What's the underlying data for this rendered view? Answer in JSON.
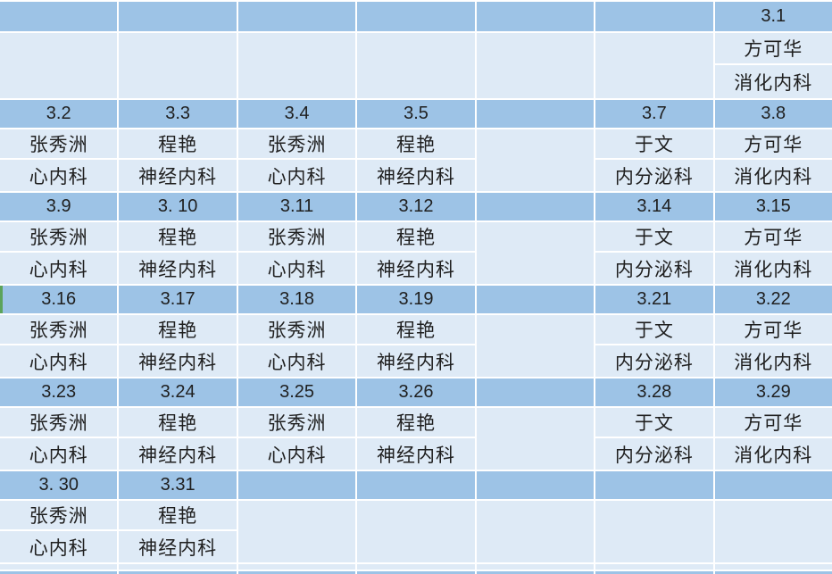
{
  "colors": {
    "date_row_bg": "#9DC3E6",
    "entry_row_bg": "#DEEAF6",
    "grid_line": "#FFFFFF",
    "text": "#1F1F1F",
    "green_marker": "#5BA35B"
  },
  "schedule": {
    "bands": [
      {
        "cells": [
          {
            "date": "",
            "name": "",
            "dept": ""
          },
          {
            "date": "",
            "name": "",
            "dept": ""
          },
          {
            "date": "",
            "name": "",
            "dept": ""
          },
          {
            "date": "",
            "name": "",
            "dept": ""
          },
          {
            "date": "",
            "name": "",
            "dept": ""
          },
          {
            "date": "",
            "name": "",
            "dept": ""
          },
          {
            "date": "3.1",
            "name": "方可华",
            "dept": "消化内科"
          }
        ]
      },
      {
        "cells": [
          {
            "date": "3.2",
            "name": "张秀洲",
            "dept": "心内科"
          },
          {
            "date": "3.3",
            "name": "程艳",
            "dept": "神经内科"
          },
          {
            "date": "3.4",
            "name": "张秀洲",
            "dept": "心内科"
          },
          {
            "date": "3.5",
            "name": "程艳",
            "dept": "神经内科"
          },
          {
            "date": "",
            "name": "",
            "dept": ""
          },
          {
            "date": "3.7",
            "name": "于文",
            "dept": "内分泌科"
          },
          {
            "date": "3.8",
            "name": "方可华",
            "dept": "消化内科"
          }
        ]
      },
      {
        "cells": [
          {
            "date": "3.9",
            "name": "张秀洲",
            "dept": "心内科"
          },
          {
            "date": "3. 10",
            "name": "程艳",
            "dept": "神经内科"
          },
          {
            "date": "3.11",
            "name": "张秀洲",
            "dept": "心内科"
          },
          {
            "date": "3.12",
            "name": "程艳",
            "dept": "神经内科"
          },
          {
            "date": "",
            "name": "",
            "dept": ""
          },
          {
            "date": "3.14",
            "name": "于文",
            "dept": "内分泌科"
          },
          {
            "date": "3.15",
            "name": "方可华",
            "dept": "消化内科"
          }
        ]
      },
      {
        "left_edge_marker": true,
        "cells": [
          {
            "date": "3.16",
            "name": "张秀洲",
            "dept": "心内科"
          },
          {
            "date": "3.17",
            "name": "程艳",
            "dept": "神经内科"
          },
          {
            "date": "3.18",
            "name": "张秀洲",
            "dept": "心内科"
          },
          {
            "date": "3.19",
            "name": "程艳",
            "dept": "神经内科"
          },
          {
            "date": "",
            "name": "",
            "dept": ""
          },
          {
            "date": "3.21",
            "name": "于文",
            "dept": "内分泌科"
          },
          {
            "date": "3.22",
            "name": "方可华",
            "dept": "消化内科"
          }
        ]
      },
      {
        "cells": [
          {
            "date": "3.23",
            "name": "张秀洲",
            "dept": "心内科"
          },
          {
            "date": "3.24",
            "name": "程艳",
            "dept": "神经内科"
          },
          {
            "date": "3.25",
            "name": "张秀洲",
            "dept": "心内科"
          },
          {
            "date": "3.26",
            "name": "程艳",
            "dept": "神经内科"
          },
          {
            "date": "",
            "name": "",
            "dept": ""
          },
          {
            "date": "3.28",
            "name": "于文",
            "dept": "内分泌科"
          },
          {
            "date": "3.29",
            "name": "方可华",
            "dept": "消化内科"
          }
        ]
      },
      {
        "cells": [
          {
            "date": "3. 30",
            "name": "张秀洲",
            "dept": "心内科"
          },
          {
            "date": "3.31",
            "name": "程艳",
            "dept": "神经内科"
          },
          {
            "date": "",
            "name": "",
            "dept": ""
          },
          {
            "date": "",
            "name": "",
            "dept": ""
          },
          {
            "date": "",
            "name": "",
            "dept": ""
          },
          {
            "date": "",
            "name": "",
            "dept": ""
          },
          {
            "date": "",
            "name": "",
            "dept": ""
          }
        ]
      }
    ]
  }
}
